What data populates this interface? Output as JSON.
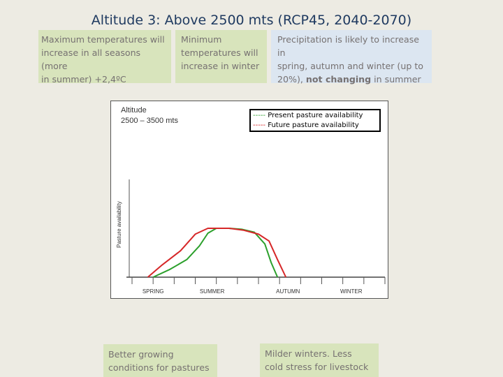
{
  "title": "Altitude 3: Above 2500 mts (RCP45, 2040-2070)",
  "boxes": {
    "max_temp": "Maximum temperatures will\nincrease in all seasons (more\nin summer) +2,4ºC",
    "min_temp": "Minimum\ntemperatures will\nincrease in winter",
    "precip_part1": "Precipitation is likely to increase in\nspring, autumn and winter (up to\n20%), ",
    "precip_bold": "not changing",
    "precip_part2": " in summer",
    "growing": "Better growing\nconditions for pastures",
    "milder": "Milder winters. Less\ncold stress for livestock"
  },
  "chart_data": {
    "type": "line",
    "title": "Altitude",
    "subtitle": "2500 – 3500 mts",
    "ylabel": "Pasture availability",
    "seasons": [
      "SPRING",
      "SUMMER",
      "AUTUMN",
      "WINTER"
    ],
    "x_range": [
      0,
      12
    ],
    "y_range": [
      0,
      10
    ],
    "series": [
      {
        "name": "Present pasture availability",
        "legend_dash": "-----",
        "color": "#2ca02c",
        "x": [
          1.0,
          1.8,
          2.6,
          3.2,
          3.6,
          4.0,
          4.6,
          5.2,
          5.8,
          6.3,
          6.6,
          6.9
        ],
        "y": [
          0.0,
          0.8,
          1.8,
          3.2,
          4.5,
          5.0,
          5.0,
          4.9,
          4.6,
          3.4,
          1.5,
          0.0
        ]
      },
      {
        "name": "Future pasture availability",
        "legend_dash": "-----",
        "color": "#d62728",
        "x": [
          0.75,
          1.4,
          2.3,
          3.0,
          3.6,
          4.1,
          4.6,
          5.3,
          6.0,
          6.5,
          6.9,
          7.3
        ],
        "y": [
          0.0,
          1.2,
          2.7,
          4.4,
          5.0,
          5.0,
          5.0,
          4.8,
          4.4,
          3.7,
          1.8,
          0.0
        ]
      }
    ]
  },
  "colors": {
    "title": "#1f3a60",
    "box_green": "#d8e4bc",
    "box_blue": "#dce6f1",
    "box_text": "#767171"
  }
}
